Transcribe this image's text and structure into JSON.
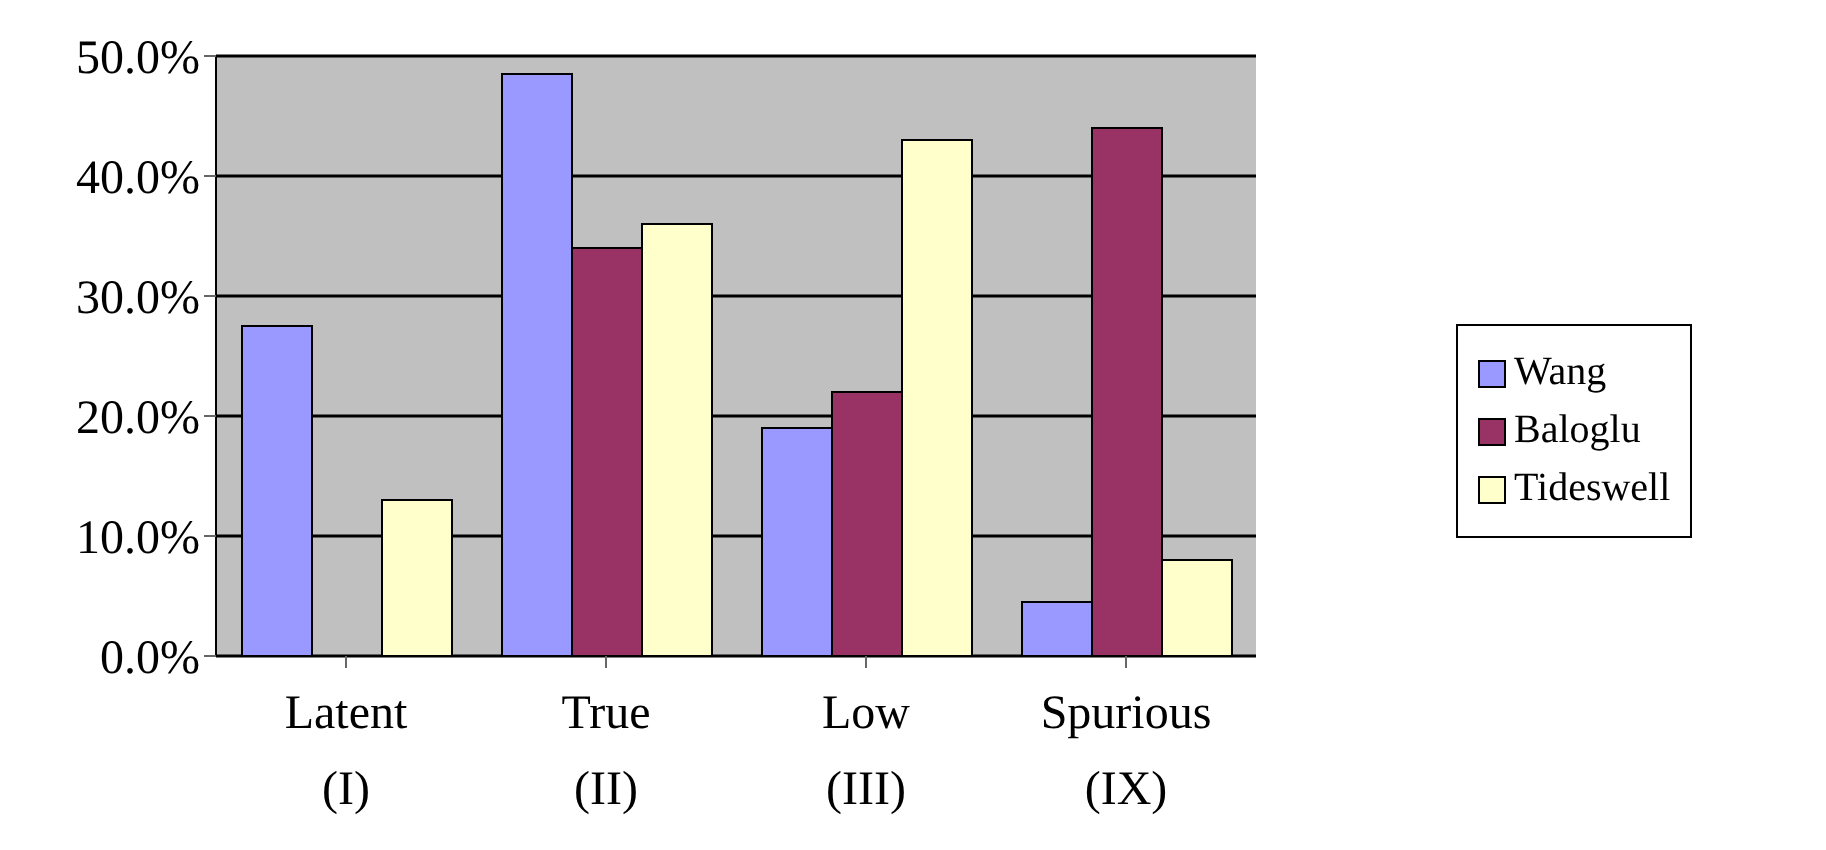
{
  "chart_data": {
    "type": "bar",
    "categories": [
      "Latent\n(I)",
      "True\n(II)",
      "Low\n(III)",
      "Spurious\n(IX)"
    ],
    "series": [
      {
        "name": "Wang",
        "color": "#9999ff",
        "values": [
          27.5,
          48.5,
          19,
          4.5
        ]
      },
      {
        "name": "Baloglu",
        "color": "#993366",
        "values": [
          0,
          34,
          22,
          44
        ]
      },
      {
        "name": "Tideswell",
        "color": "#ffffcc",
        "values": [
          13,
          36,
          43,
          8
        ]
      }
    ],
    "ylim": [
      0,
      50
    ],
    "yticks": [
      {
        "value": 0,
        "label": "0.0%"
      },
      {
        "value": 10,
        "label": "10.0%"
      },
      {
        "value": 20,
        "label": "20.0%"
      },
      {
        "value": 30,
        "label": "30.0%"
      },
      {
        "value": 40,
        "label": "40.0%"
      },
      {
        "value": 50,
        "label": "50.0%"
      }
    ],
    "grid": "y",
    "legend": "right"
  }
}
